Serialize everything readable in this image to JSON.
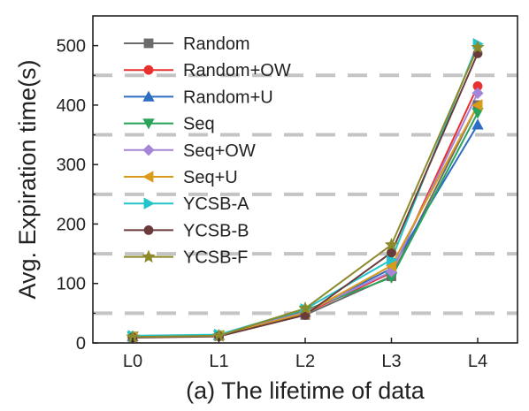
{
  "chart_data": {
    "type": "line",
    "categories": [
      "L0",
      "L1",
      "L2",
      "L3",
      "L4"
    ],
    "xlabel": "(a) The lifetime of data",
    "ylabel": "Avg. Expiration time(s)",
    "ylim": [
      0,
      550
    ],
    "yticks": [
      0,
      100,
      200,
      300,
      400,
      500
    ],
    "dashed_reference_lines": [
      50,
      150,
      250,
      350,
      450
    ],
    "legend_position": "top-left",
    "series": [
      {
        "name": "Random",
        "color": "#6b6b6b",
        "marker": "square",
        "values": [
          10,
          12,
          47,
          112,
          400
        ]
      },
      {
        "name": "Random+OW",
        "color": "#e8312f",
        "marker": "circle",
        "values": [
          10,
          12,
          50,
          118,
          432
        ]
      },
      {
        "name": "Random+U",
        "color": "#2e6dc2",
        "marker": "triangle-up",
        "values": [
          11,
          13,
          52,
          125,
          367
        ]
      },
      {
        "name": "Seq",
        "color": "#2aa35a",
        "marker": "triangle-down",
        "values": [
          11,
          13,
          55,
          110,
          387
        ]
      },
      {
        "name": "Seq+OW",
        "color": "#a685d6",
        "marker": "diamond",
        "values": [
          10,
          12,
          52,
          120,
          420
        ]
      },
      {
        "name": "Seq+U",
        "color": "#d99b1a",
        "marker": "triangle-left",
        "values": [
          10,
          12,
          50,
          130,
          400
        ]
      },
      {
        "name": "YCSB-A",
        "color": "#22c4c9",
        "marker": "triangle-right",
        "values": [
          12,
          14,
          57,
          140,
          503
        ]
      },
      {
        "name": "YCSB-B",
        "color": "#6b3b3b",
        "marker": "hexagon",
        "values": [
          9,
          11,
          47,
          152,
          487
        ]
      },
      {
        "name": "YCSB-F",
        "color": "#8c8a2a",
        "marker": "star",
        "values": [
          10,
          12,
          58,
          165,
          497
        ]
      }
    ]
  }
}
